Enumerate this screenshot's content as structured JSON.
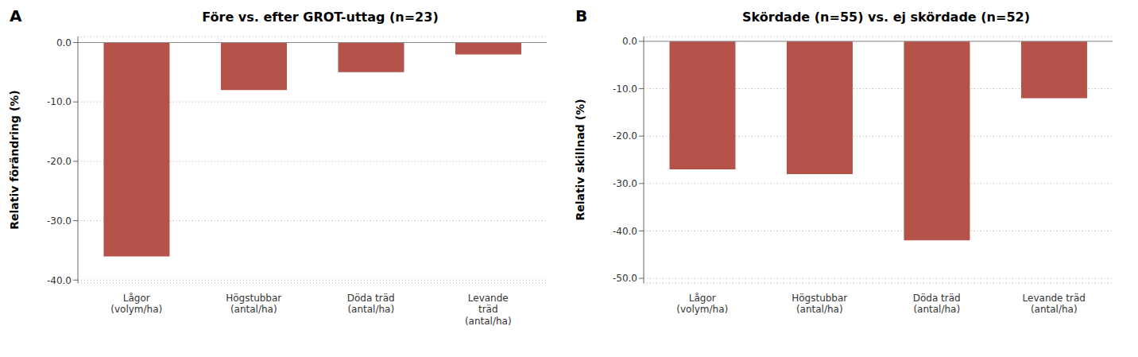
{
  "chart_data": [
    {
      "type": "bar",
      "title": "Före vs. efter GROT-uttag (n=23)",
      "ylabel": "Relativ förändring (%)",
      "annotations": [
        "A"
      ],
      "categories": [
        "Lågor\n(volym/ha)",
        "Högstubbar\n(antal/ha)",
        "Döda träd\n(antal/ha)",
        "Levande\nträd\n(antal/ha)"
      ],
      "values": [
        -36.0,
        -8.0,
        -5.0,
        -2.0
      ],
      "color": "#b5524a",
      "ylim": [
        -40.5,
        1.0
      ],
      "yticks": [
        {
          "value": 0.0,
          "label": "0.0"
        },
        {
          "value": -10.0,
          "label": "-10.0"
        },
        {
          "value": -20.0,
          "label": "-20.0"
        },
        {
          "value": -30.0,
          "label": "-30.0"
        },
        {
          "value": -40.0,
          "label": "-40.0"
        }
      ],
      "grid": true
    },
    {
      "type": "bar",
      "title": "Skördade (n=55) vs. ej skördade (n=52)",
      "ylabel": "Relativ skillnad (%)",
      "annotations": [
        "B"
      ],
      "categories": [
        "Lågor\n(volym/ha)",
        "Högstubbar\n(antal/ha)",
        "Döda träd\n(antal/ha)",
        "Levande träd\n(antal/ha)"
      ],
      "values": [
        -27.0,
        -28.0,
        -42.0,
        -12.0
      ],
      "color": "#b5524a",
      "ylim": [
        -51.0,
        1.0
      ],
      "yticks": [
        {
          "value": 0.0,
          "label": "0.0"
        },
        {
          "value": -10.0,
          "label": "-10.0"
        },
        {
          "value": -20.0,
          "label": "-20.0"
        },
        {
          "value": -30.0,
          "label": "-30.0"
        },
        {
          "value": -40.0,
          "label": "-40.0"
        },
        {
          "value": -50.0,
          "label": "-50.0"
        }
      ],
      "grid": true
    }
  ]
}
